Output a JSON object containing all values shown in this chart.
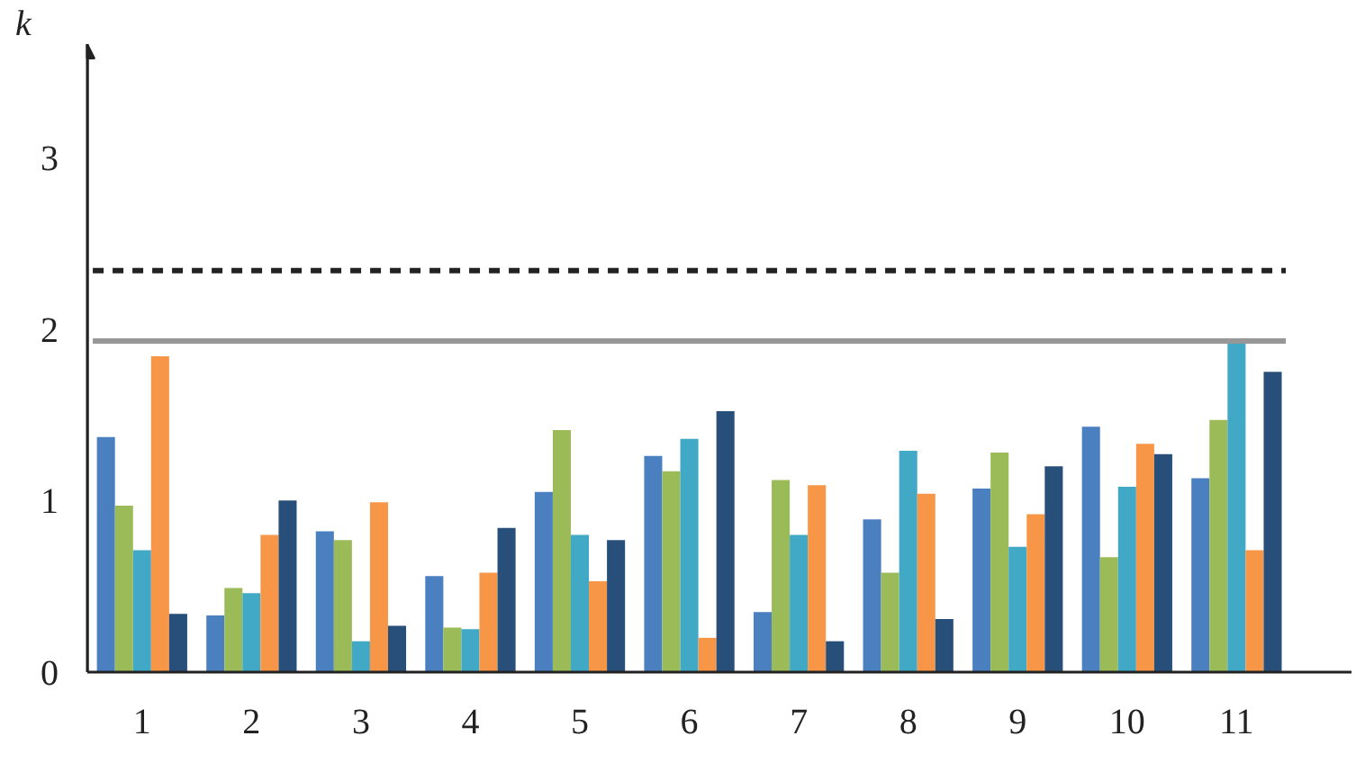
{
  "chart_data": {
    "type": "bar",
    "ylabel": "k",
    "categories": [
      "1",
      "2",
      "3",
      "4",
      "5",
      "6",
      "7",
      "8",
      "9",
      "10",
      "11"
    ],
    "series": [
      {
        "color": "#4a7fc0",
        "values": [
          1.37,
          0.33,
          0.82,
          0.56,
          1.05,
          1.26,
          0.35,
          0.89,
          1.07,
          1.43,
          1.13
        ]
      },
      {
        "color": "#9bbb59",
        "values": [
          0.97,
          0.49,
          0.77,
          0.26,
          1.41,
          1.17,
          1.12,
          0.58,
          1.28,
          0.67,
          1.47
        ]
      },
      {
        "color": "#41a9c6",
        "values": [
          0.71,
          0.46,
          0.18,
          0.25,
          0.8,
          1.36,
          0.8,
          1.29,
          0.73,
          1.08,
          1.94
        ]
      },
      {
        "color": "#f79646",
        "values": [
          1.84,
          0.8,
          0.99,
          0.58,
          0.53,
          0.2,
          1.09,
          1.04,
          0.92,
          1.33,
          0.71
        ]
      },
      {
        "color": "#284f7a",
        "values": [
          0.34,
          1.0,
          0.27,
          0.84,
          0.77,
          1.52,
          0.18,
          0.31,
          1.2,
          1.27,
          1.75
        ]
      }
    ],
    "ylim": [
      0,
      3.66
    ],
    "yticks": [
      0,
      1,
      2,
      3
    ],
    "grid": false,
    "ref_lines": [
      {
        "axis": "y",
        "value": 2.34,
        "color": "#222222",
        "line_style": "dashed"
      },
      {
        "axis": "y",
        "value": 1.93,
        "color": "#979797",
        "line_style": "solid"
      }
    ]
  }
}
